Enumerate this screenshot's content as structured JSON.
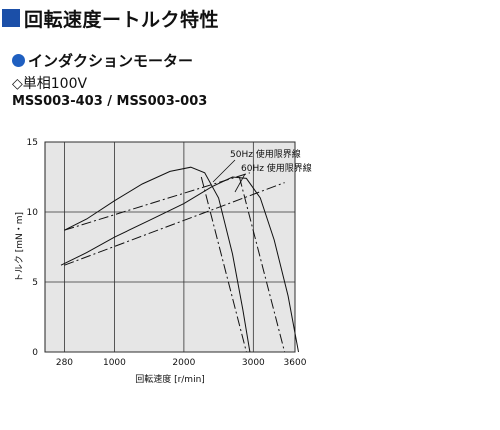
{
  "header": {
    "title": "回転速度ートルク特性"
  },
  "section": {
    "motor_type": "インダクションモーター",
    "phase": "◇単相100V",
    "model": "MSS003-403 / MSS003-003"
  },
  "chart_data": {
    "type": "line",
    "title": "",
    "xlabel": "回転速度 [r/min]",
    "ylabel": "トルク [mN・m]",
    "xticks": [
      280,
      1000,
      2000,
      3000,
      3600
    ],
    "xtick_labels": [
      "280",
      "1000",
      "2000",
      "3000",
      "3600"
    ],
    "yticks": [
      0,
      5,
      10,
      15
    ],
    "ylim": [
      0,
      15
    ],
    "xlim": [
      0,
      3600
    ],
    "grid": true,
    "annotations": [
      "50Hz 使用限界線",
      "60Hz 使用限界線"
    ],
    "series": [
      {
        "style": "solid",
        "x": [
          280,
          600,
          1000,
          1400,
          1800,
          2100,
          2300,
          2500,
          2700,
          2850,
          2950
        ],
        "y": [
          8.7,
          9.5,
          10.8,
          12.0,
          12.9,
          13.2,
          12.8,
          11.0,
          7.0,
          3.0,
          0
        ]
      },
      {
        "style": "solid",
        "x": [
          230,
          600,
          1000,
          1500,
          2000,
          2400,
          2700,
          2900,
          3100,
          3300,
          3500,
          3650
        ],
        "y": [
          6.2,
          7.1,
          8.2,
          9.4,
          10.6,
          11.8,
          12.5,
          12.4,
          11.0,
          8.0,
          4.0,
          0
        ]
      },
      {
        "style": "dashdot",
        "x": [
          280,
          2950
        ],
        "y": [
          8.7,
          12.8
        ]
      },
      {
        "style": "dashdot",
        "x": [
          280,
          3450
        ],
        "y": [
          6.2,
          12.1
        ]
      },
      {
        "style": "dashdot",
        "x": [
          2250,
          2900
        ],
        "y": [
          12.5,
          0
        ]
      },
      {
        "style": "dashdot",
        "x": [
          2800,
          3450
        ],
        "y": [
          12.5,
          0
        ]
      }
    ]
  }
}
